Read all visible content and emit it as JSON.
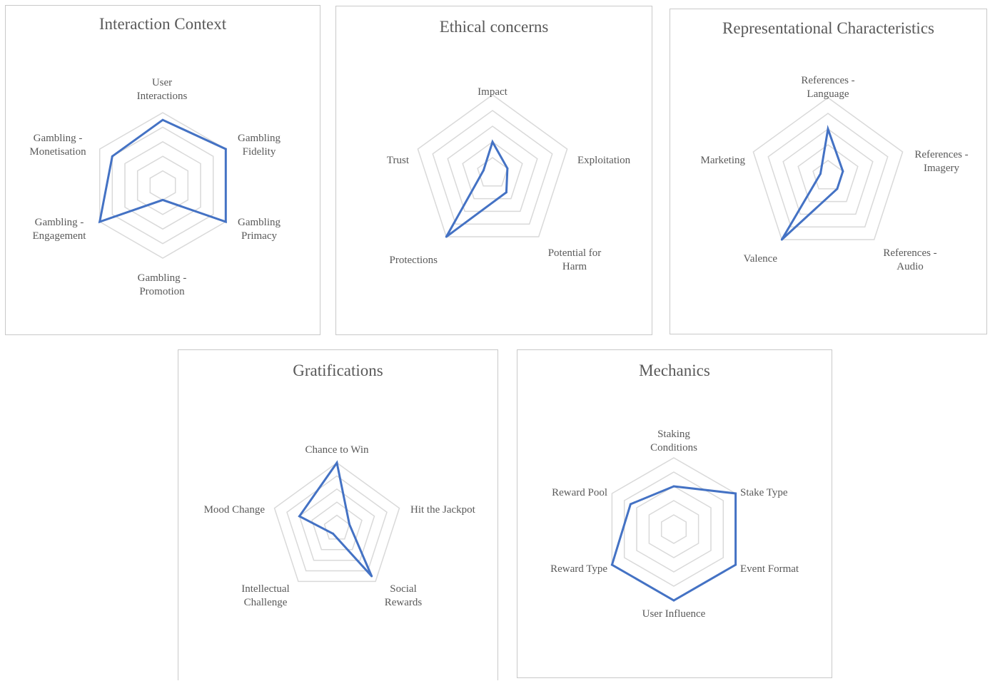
{
  "chart_data": [
    {
      "type": "radar",
      "title": "Interaction Context",
      "categories": [
        "User Interactions",
        "Gambling Fidelity",
        "Gambling Primacy",
        "Gambling - Promotion",
        "Gambling - Engagement",
        "Gambling - Monetisation"
      ],
      "values": [
        4.5,
        5,
        5,
        1,
        5,
        4
      ],
      "rlim": [
        0,
        5
      ],
      "grid": true,
      "series_color": "#4472C4"
    },
    {
      "type": "radar",
      "title": "Ethical concerns",
      "categories": [
        "Impact",
        "Exploitation",
        "Potential for Harm",
        "Protections",
        "Trust"
      ],
      "values": [
        2,
        1,
        1.5,
        5,
        0.6
      ],
      "rlim": [
        0,
        5
      ],
      "grid": true,
      "series_color": "#4472C4"
    },
    {
      "type": "radar",
      "title": "Representational Characteristics",
      "categories": [
        "References - Language",
        "References - Imagery",
        "References - Audio",
        "Valence",
        "Marketing"
      ],
      "values": [
        3,
        1,
        1,
        5,
        0.5
      ],
      "rlim": [
        0,
        5
      ],
      "grid": true,
      "series_color": "#4472C4"
    },
    {
      "type": "radar",
      "title": "Gratifications",
      "categories": [
        "Chance to Win",
        "Hit the Jackpot",
        "Social Rewards",
        "Intellectual Challenge",
        "Mood Change"
      ],
      "values": [
        5,
        1,
        4.5,
        0.5,
        3
      ],
      "rlim": [
        0,
        5
      ],
      "grid": true,
      "series_color": "#4472C4"
    },
    {
      "type": "radar",
      "title": "Mechanics",
      "categories": [
        "Staking Conditions",
        "Stake Type",
        "Event Format",
        "User Influence",
        "Reward Type",
        "Reward Pool"
      ],
      "values": [
        3,
        5,
        5,
        5,
        5,
        3.5
      ],
      "rlim": [
        0,
        5
      ],
      "grid": true,
      "series_color": "#4472C4"
    }
  ]
}
